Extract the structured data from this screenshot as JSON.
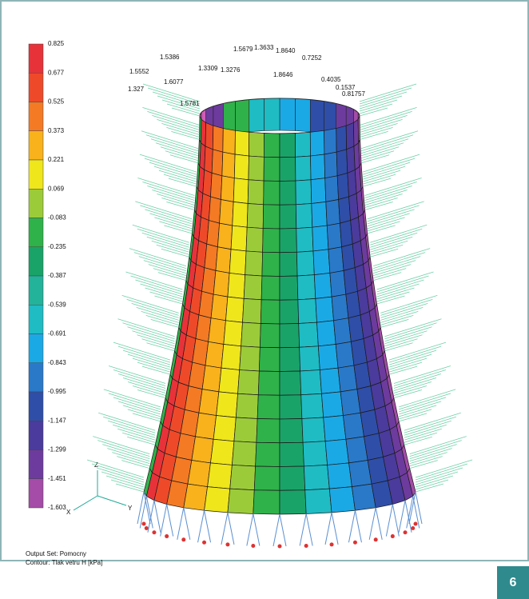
{
  "legend": {
    "labels": [
      "0.825",
      "0.677",
      "0.525",
      "0.373",
      "0.221",
      "0.069",
      "-0.083",
      "-0.235",
      "-0.387",
      "-0.539",
      "-0.691",
      "-0.843",
      "-0.995",
      "-1.147",
      "-1.299",
      "-1.451",
      "-1.603"
    ]
  },
  "load_labels": [
    "1.5679",
    "1.3633",
    "1.8640",
    "0.7252",
    "1.5386",
    "1.3309",
    "1.3276",
    "1.8646",
    "0.4035",
    "0.1537",
    "1.5552",
    "1.6077",
    "1.327",
    "0.81757",
    "1.5781"
  ],
  "axes": {
    "z": "Z",
    "x": "X",
    "y": "Y"
  },
  "caption": {
    "output_set": "Output Set: Pomocny",
    "contour": "Contour: Tlak vetru H [kPa]"
  },
  "page_number": "6"
}
